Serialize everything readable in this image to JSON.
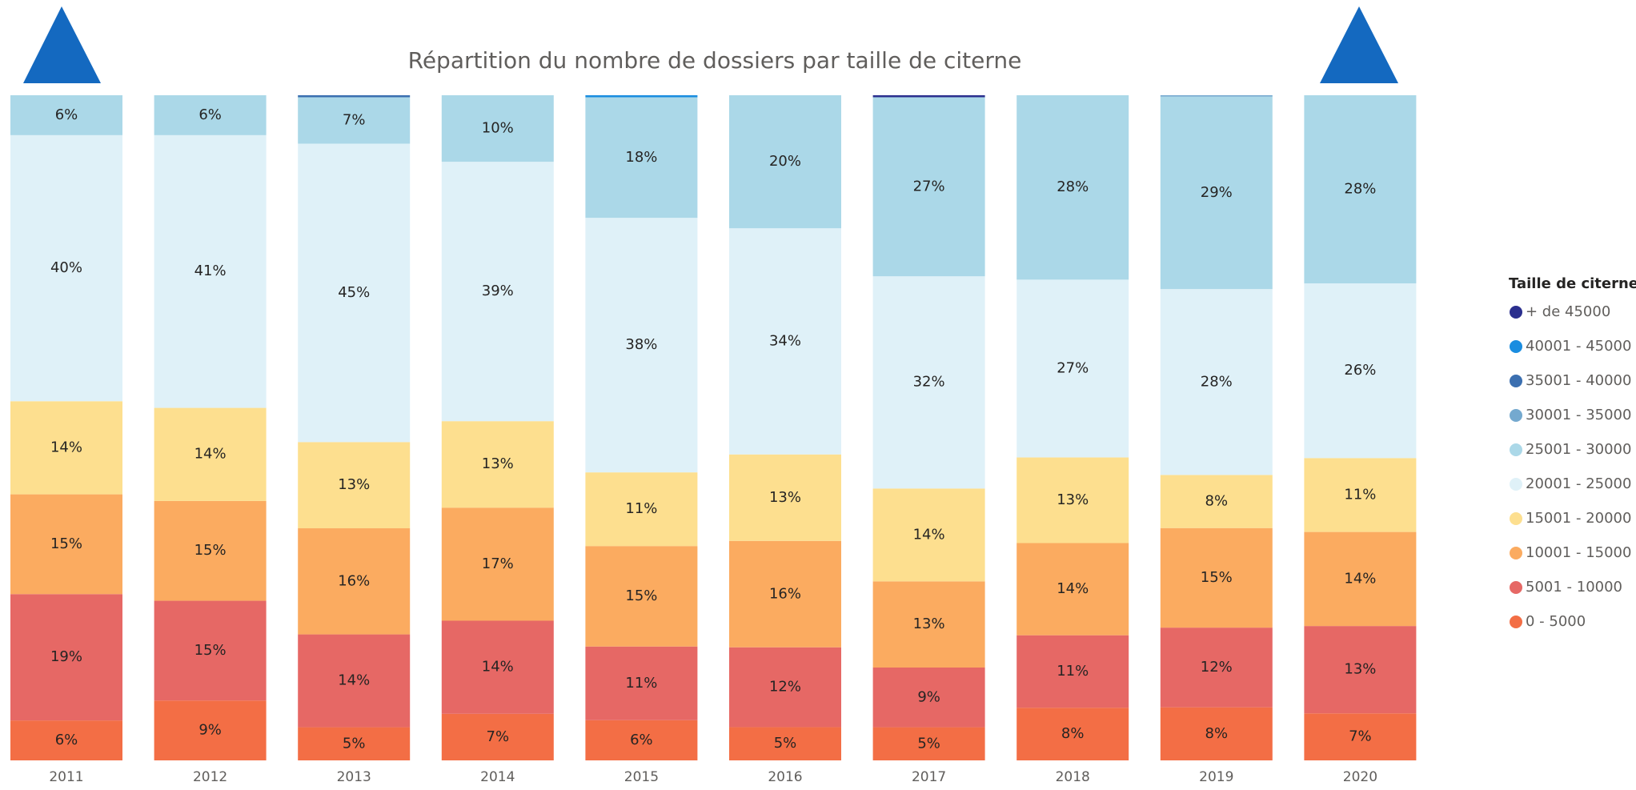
{
  "chart_data": {
    "type": "stacked_bar_100",
    "title": "Répartition du nombre de dossiers par taille de citerne",
    "legend_title": "Taille de citerne",
    "legend": "right",
    "categories": [
      "2011",
      "2012",
      "2013",
      "2014",
      "2015",
      "2016",
      "2017",
      "2018",
      "2019",
      "2020"
    ],
    "series": [
      {
        "name": "0 - 5000",
        "color": "#f36e45",
        "values": [
          6,
          9,
          5,
          7,
          6,
          5,
          5,
          8,
          8,
          7
        ],
        "value_labels": [
          "6%",
          "9%",
          "5%",
          "7%",
          "6%",
          "5%",
          "5%",
          "8%",
          "8%",
          "7%"
        ]
      },
      {
        "name": "5001 - 10000",
        "color": "#e66865",
        "values": [
          19,
          15,
          14,
          14,
          11,
          12,
          9,
          11,
          12,
          13
        ],
        "value_labels": [
          "19%",
          "15%",
          "14%",
          "14%",
          "11%",
          "12%",
          "9%",
          "11%",
          "12%",
          "13%"
        ]
      },
      {
        "name": "10001 - 15000",
        "color": "#fbab60",
        "values": [
          15,
          15,
          16,
          17,
          15,
          16,
          13,
          14,
          15,
          14
        ],
        "value_labels": [
          "15%",
          "15%",
          "16%",
          "17%",
          "15%",
          "16%",
          "13%",
          "14%",
          "15%",
          "14%"
        ]
      },
      {
        "name": "15001 - 20000",
        "color": "#fddf8f",
        "values": [
          14,
          14,
          13,
          13,
          11,
          13,
          14,
          13,
          8,
          11
        ],
        "value_labels": [
          "14%",
          "14%",
          "13%",
          "13%",
          "11%",
          "13%",
          "14%",
          "13%",
          "8%",
          "11%"
        ]
      },
      {
        "name": "20001 - 25000",
        "color": "#dff1f8",
        "values": [
          40,
          41,
          45,
          39,
          38,
          34,
          32,
          27,
          28,
          26
        ],
        "value_labels": [
          "40%",
          "41%",
          "45%",
          "39%",
          "38%",
          "34%",
          "32%",
          "27%",
          "28%",
          "26%"
        ]
      },
      {
        "name": "25001 - 30000",
        "color": "#abd8e8",
        "values": [
          6,
          6,
          7,
          10,
          18,
          20,
          27,
          28,
          29,
          28
        ],
        "value_labels": [
          "6%",
          "6%",
          "7%",
          "10%",
          "18%",
          "20%",
          "27%",
          "28%",
          "29%",
          "28%"
        ]
      },
      {
        "name": "30001 - 35000",
        "color": "#74a9cf",
        "values": [
          0,
          0,
          0,
          0,
          0,
          0,
          0,
          0,
          0.2,
          0
        ],
        "value_labels": [
          null,
          null,
          null,
          null,
          null,
          null,
          null,
          null,
          null,
          null
        ]
      },
      {
        "name": "35001 - 40000",
        "color": "#3b6fb0",
        "values": [
          0,
          0,
          0.3,
          0,
          0,
          0,
          0,
          0,
          0,
          0
        ],
        "value_labels": [
          null,
          null,
          null,
          null,
          null,
          null,
          null,
          null,
          null,
          null
        ]
      },
      {
        "name": "40001 - 45000",
        "color": "#1a8de0",
        "values": [
          0,
          0,
          0,
          0,
          0.3,
          0,
          0,
          0,
          0,
          0
        ],
        "value_labels": [
          null,
          null,
          null,
          null,
          null,
          null,
          null,
          null,
          null,
          null
        ]
      },
      {
        "name": "+ de 45000",
        "color": "#2b2f8e",
        "values": [
          0,
          0,
          0,
          0,
          0,
          0,
          0.3,
          0,
          0,
          0
        ],
        "value_labels": [
          null,
          null,
          null,
          null,
          null,
          null,
          null,
          null,
          null,
          null
        ]
      }
    ]
  }
}
